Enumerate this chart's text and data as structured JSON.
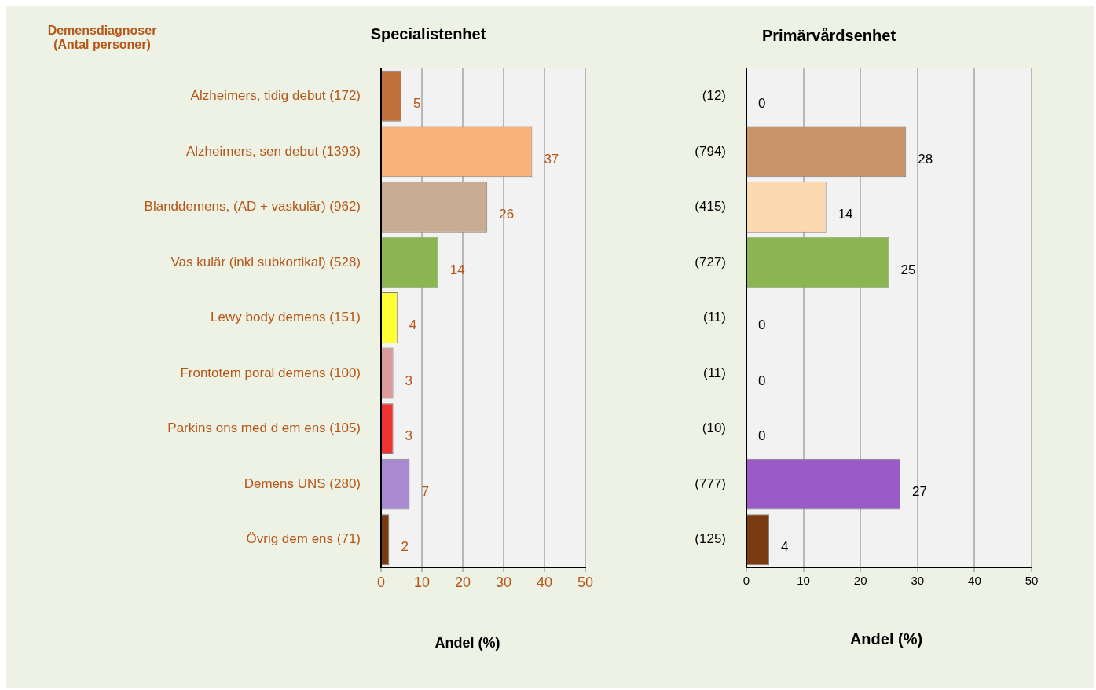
{
  "chart_data": [
    {
      "type": "bar",
      "orientation": "horizontal",
      "title": "Specialistenhet",
      "ylabel": "Demensdiagnoser\n(Antal personer)",
      "xlabel": "Andel (%)",
      "categories": [
        "Alzheimers, tidig debut (172)",
        "Alzheimers, sen debut (1393)",
        "Blanddemens, (AD + vaskulär) (962)",
        "Vas kulär (inkl subkortikal) (528)",
        "Lewy body demens (151)",
        "Frontotem poral demens (100)",
        "Parkins ons med d em ens (105)",
        "Demens UNS (280)",
        "Övrig dem ens (71)"
      ],
      "values": [
        5,
        37,
        26,
        14,
        4,
        3,
        3,
        7,
        2
      ],
      "colors": [
        "#c0703a",
        "#f9b27a",
        "#c9ad93",
        "#8bb653",
        "#ffff33",
        "#dd9a9a",
        "#ee3333",
        "#a98ad0",
        "#7a3a10"
      ],
      "xlim": [
        0,
        50
      ],
      "xticks": [
        0,
        10,
        20,
        30,
        40,
        50
      ],
      "grid": "x",
      "data_labels": true
    },
    {
      "type": "bar",
      "orientation": "horizontal",
      "title": "Primärvårdsenhet",
      "xlabel": "Andel (%)",
      "categories": [
        "(12)",
        "(794)",
        "(415)",
        "(727)",
        "(11)",
        "(11)",
        "(10)",
        "(777)",
        "(125)"
      ],
      "values": [
        0,
        28,
        14,
        25,
        0,
        0,
        0,
        27,
        4
      ],
      "colors": [
        "#5a3a2a",
        "#c8956b",
        "#fdd9b0",
        "#8bb653",
        "#6a9a3a",
        "#888888",
        "#cc3366",
        "#9a5ac8",
        "#7a3a10"
      ],
      "xlim": [
        0,
        50
      ],
      "xticks": [
        0,
        10,
        20,
        30,
        40,
        50
      ],
      "grid": "x",
      "data_labels": true
    }
  ]
}
